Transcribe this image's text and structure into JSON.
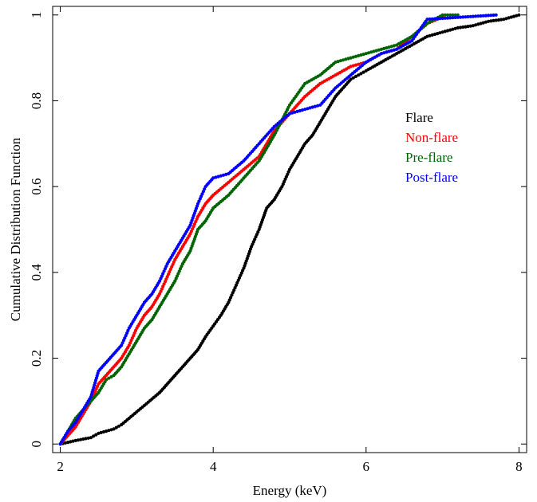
{
  "chart_data": {
    "type": "scatter",
    "xlabel": "Energy (keV)",
    "ylabel": "Cumulative Distribution Function",
    "xlim": [
      1.9,
      8.1
    ],
    "ylim": [
      -0.02,
      1.02
    ],
    "x_ticks": [
      2,
      4,
      6,
      8
    ],
    "y_ticks": [
      0,
      0.2,
      0.4,
      0.6,
      0.8,
      1
    ],
    "legend_position": "right, upper middle",
    "series": [
      {
        "name": "Flare",
        "color": "#000000",
        "points": [
          [
            2.0,
            0.0
          ],
          [
            2.2,
            0.008
          ],
          [
            2.4,
            0.015
          ],
          [
            2.5,
            0.025
          ],
          [
            2.6,
            0.03
          ],
          [
            2.7,
            0.035
          ],
          [
            2.8,
            0.045
          ],
          [
            2.9,
            0.06
          ],
          [
            3.0,
            0.075
          ],
          [
            3.1,
            0.09
          ],
          [
            3.2,
            0.105
          ],
          [
            3.3,
            0.12
          ],
          [
            3.4,
            0.14
          ],
          [
            3.5,
            0.16
          ],
          [
            3.6,
            0.18
          ],
          [
            3.7,
            0.2
          ],
          [
            3.8,
            0.22
          ],
          [
            3.9,
            0.25
          ],
          [
            4.0,
            0.275
          ],
          [
            4.1,
            0.3
          ],
          [
            4.2,
            0.33
          ],
          [
            4.3,
            0.37
          ],
          [
            4.4,
            0.41
          ],
          [
            4.5,
            0.46
          ],
          [
            4.6,
            0.5
          ],
          [
            4.7,
            0.55
          ],
          [
            4.8,
            0.57
          ],
          [
            4.9,
            0.6
          ],
          [
            5.0,
            0.64
          ],
          [
            5.1,
            0.67
          ],
          [
            5.2,
            0.7
          ],
          [
            5.3,
            0.72
          ],
          [
            5.4,
            0.75
          ],
          [
            5.5,
            0.78
          ],
          [
            5.6,
            0.81
          ],
          [
            5.7,
            0.83
          ],
          [
            5.8,
            0.85
          ],
          [
            5.9,
            0.86
          ],
          [
            6.0,
            0.87
          ],
          [
            6.2,
            0.89
          ],
          [
            6.4,
            0.91
          ],
          [
            6.6,
            0.93
          ],
          [
            6.8,
            0.95
          ],
          [
            7.0,
            0.96
          ],
          [
            7.2,
            0.97
          ],
          [
            7.4,
            0.975
          ],
          [
            7.6,
            0.985
          ],
          [
            7.8,
            0.99
          ],
          [
            8.0,
            1.0
          ]
        ]
      },
      {
        "name": "Non-flare",
        "color": "#ff0000",
        "points": [
          [
            2.0,
            0.0
          ],
          [
            2.1,
            0.02
          ],
          [
            2.2,
            0.04
          ],
          [
            2.3,
            0.07
          ],
          [
            2.4,
            0.1
          ],
          [
            2.5,
            0.14
          ],
          [
            2.6,
            0.16
          ],
          [
            2.7,
            0.18
          ],
          [
            2.8,
            0.2
          ],
          [
            2.9,
            0.23
          ],
          [
            3.0,
            0.27
          ],
          [
            3.1,
            0.3
          ],
          [
            3.2,
            0.32
          ],
          [
            3.3,
            0.35
          ],
          [
            3.4,
            0.39
          ],
          [
            3.5,
            0.43
          ],
          [
            3.6,
            0.46
          ],
          [
            3.7,
            0.49
          ],
          [
            3.8,
            0.53
          ],
          [
            3.9,
            0.56
          ],
          [
            4.0,
            0.58
          ],
          [
            4.2,
            0.61
          ],
          [
            4.4,
            0.64
          ],
          [
            4.6,
            0.67
          ],
          [
            4.8,
            0.73
          ],
          [
            5.0,
            0.77
          ],
          [
            5.2,
            0.81
          ],
          [
            5.4,
            0.84
          ],
          [
            5.6,
            0.86
          ],
          [
            5.8,
            0.88
          ],
          [
            6.0,
            0.89
          ],
          [
            6.2,
            0.91
          ],
          [
            6.4,
            0.92
          ],
          [
            6.6,
            0.95
          ],
          [
            6.8,
            0.98
          ],
          [
            7.0,
            0.995
          ]
        ]
      },
      {
        "name": "Pre-flare",
        "color": "#006400",
        "points": [
          [
            2.0,
            0.0
          ],
          [
            2.1,
            0.03
          ],
          [
            2.2,
            0.06
          ],
          [
            2.3,
            0.08
          ],
          [
            2.4,
            0.1
          ],
          [
            2.5,
            0.12
          ],
          [
            2.6,
            0.15
          ],
          [
            2.7,
            0.16
          ],
          [
            2.8,
            0.18
          ],
          [
            2.9,
            0.21
          ],
          [
            3.0,
            0.24
          ],
          [
            3.1,
            0.27
          ],
          [
            3.2,
            0.29
          ],
          [
            3.3,
            0.32
          ],
          [
            3.4,
            0.35
          ],
          [
            3.5,
            0.38
          ],
          [
            3.6,
            0.42
          ],
          [
            3.7,
            0.45
          ],
          [
            3.8,
            0.5
          ],
          [
            3.9,
            0.52
          ],
          [
            4.0,
            0.55
          ],
          [
            4.2,
            0.58
          ],
          [
            4.4,
            0.62
          ],
          [
            4.6,
            0.66
          ],
          [
            4.8,
            0.72
          ],
          [
            5.0,
            0.79
          ],
          [
            5.2,
            0.84
          ],
          [
            5.4,
            0.86
          ],
          [
            5.6,
            0.89
          ],
          [
            5.8,
            0.9
          ],
          [
            6.0,
            0.91
          ],
          [
            6.2,
            0.92
          ],
          [
            6.4,
            0.93
          ],
          [
            6.6,
            0.95
          ],
          [
            6.8,
            0.98
          ],
          [
            7.0,
            1.0
          ],
          [
            7.2,
            1.0
          ]
        ]
      },
      {
        "name": "Post-flare",
        "color": "#0000ff",
        "points": [
          [
            2.0,
            0.0
          ],
          [
            2.1,
            0.03
          ],
          [
            2.2,
            0.05
          ],
          [
            2.3,
            0.08
          ],
          [
            2.4,
            0.11
          ],
          [
            2.5,
            0.17
          ],
          [
            2.6,
            0.19
          ],
          [
            2.7,
            0.21
          ],
          [
            2.8,
            0.23
          ],
          [
            2.9,
            0.27
          ],
          [
            3.0,
            0.3
          ],
          [
            3.1,
            0.33
          ],
          [
            3.2,
            0.35
          ],
          [
            3.3,
            0.38
          ],
          [
            3.4,
            0.42
          ],
          [
            3.5,
            0.45
          ],
          [
            3.6,
            0.48
          ],
          [
            3.7,
            0.51
          ],
          [
            3.8,
            0.56
          ],
          [
            3.9,
            0.6
          ],
          [
            4.0,
            0.62
          ],
          [
            4.2,
            0.63
          ],
          [
            4.4,
            0.66
          ],
          [
            4.6,
            0.7
          ],
          [
            4.8,
            0.74
          ],
          [
            5.0,
            0.77
          ],
          [
            5.2,
            0.78
          ],
          [
            5.4,
            0.79
          ],
          [
            5.6,
            0.83
          ],
          [
            5.8,
            0.86
          ],
          [
            6.0,
            0.89
          ],
          [
            6.2,
            0.91
          ],
          [
            6.4,
            0.92
          ],
          [
            6.6,
            0.94
          ],
          [
            6.8,
            0.99
          ],
          [
            7.7,
            1.0
          ]
        ]
      }
    ]
  }
}
